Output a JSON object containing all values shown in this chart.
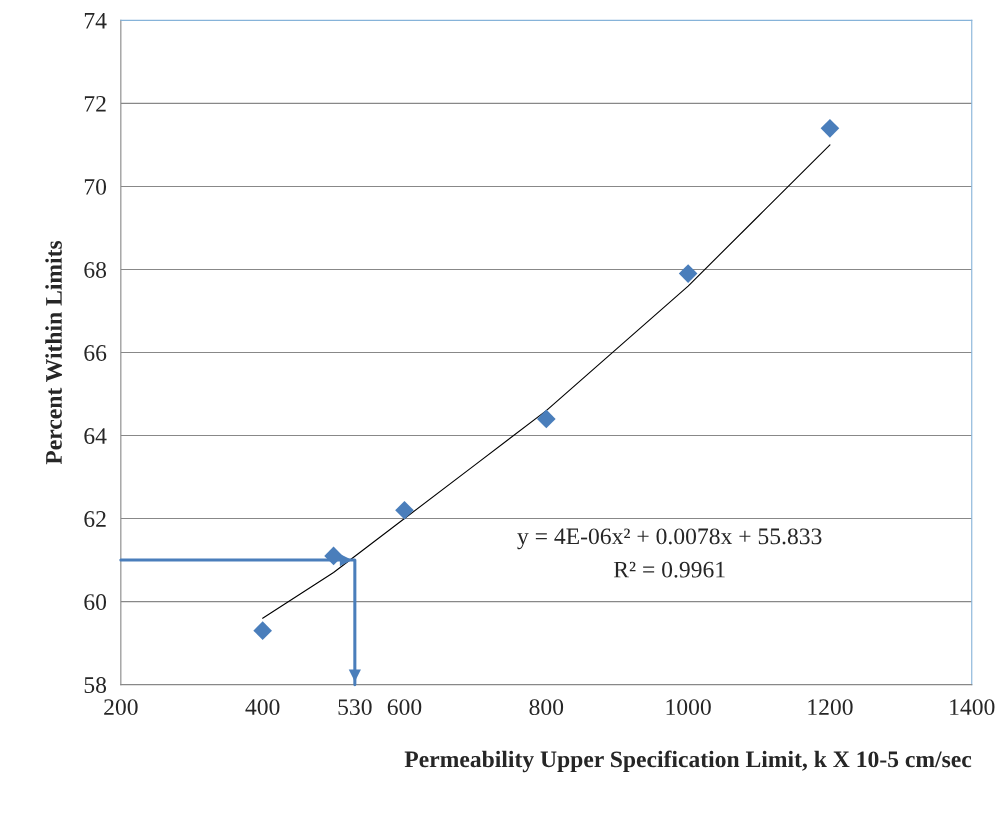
{
  "chart_data": {
    "type": "scatter",
    "xlabel": "Permeability Upper Specification Limit, k X 10-5 cm/sec",
    "ylabel": "Percent Within Limits",
    "x": [
      400,
      500,
      600,
      800,
      1000,
      1200
    ],
    "series": [
      {
        "color": "#4a7ebb",
        "marker": "diamond",
        "values": [
          59.3,
          61.1,
          62.2,
          64.4,
          67.9,
          71.4
        ]
      },
      {
        "type": "line",
        "color": "#000000",
        "marker": "none",
        "x": [
          400,
          500,
          600,
          700,
          800,
          900,
          1000,
          1100,
          1200
        ],
        "values": [
          59.6,
          60.7,
          62.0,
          63.3,
          64.6,
          66.1,
          67.6,
          69.3,
          71.0
        ]
      },
      {
        "type": "line",
        "color": "#4a7ebb",
        "marker": "none",
        "x": [
          200,
          530,
          530
        ],
        "values": [
          61,
          61,
          58
        ]
      }
    ],
    "xlim": [
      200,
      1400
    ],
    "xticks": [
      200,
      400,
      {
        "value": 530,
        "label": "530"
      },
      600,
      800,
      1000,
      1200,
      1400
    ],
    "ylim": [
      58,
      74
    ],
    "yticks": [
      58,
      60,
      62,
      64,
      66,
      68,
      70,
      72,
      74
    ],
    "grid": "y",
    "annotations": [
      "y = 4E-06x² + 0.0078x + 55.833",
      "R² = 0.9961"
    ]
  }
}
